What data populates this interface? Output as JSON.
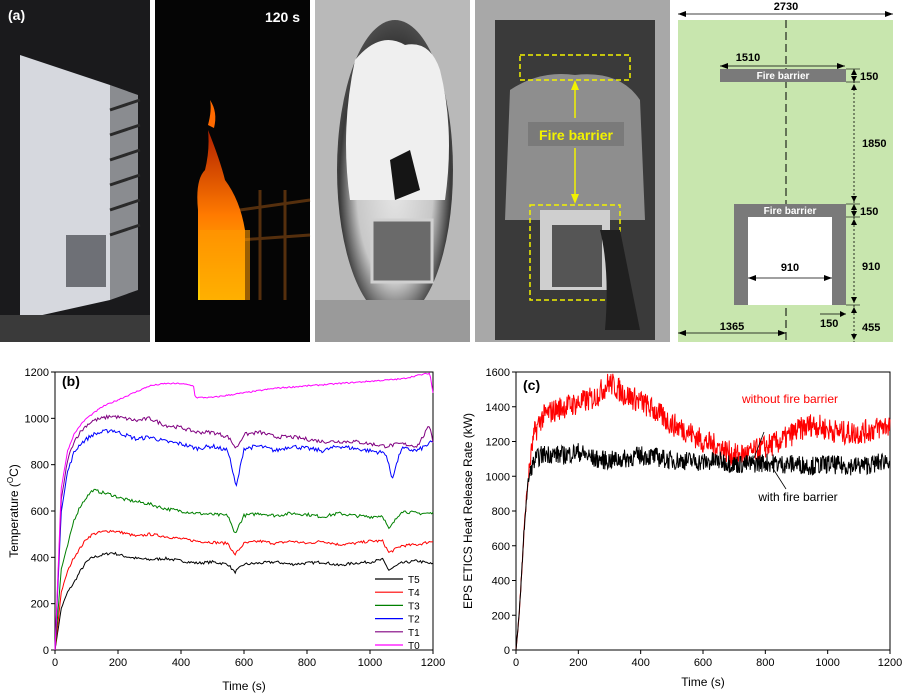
{
  "panel_a": {
    "label": "(a)",
    "time_label": "120 s",
    "photo_annotation": "Fire barrier",
    "drawing": {
      "barrier_top_label": "Fire barrier",
      "barrier_bottom_label": "Fire barrier",
      "dim_total_width": "2730",
      "dim_barrier_width": "1510",
      "dim_barrier_top": "150",
      "dim_gap": "1850",
      "dim_barrier_bottom": "150",
      "dim_window_height": "910",
      "dim_window_width": "910",
      "dim_side": "150",
      "dim_half_width": "1365",
      "dim_sill": "455"
    }
  },
  "colors": {
    "drawing_bg": "#c8e6ae",
    "barrier": "#7a7a7a",
    "annotation_yellow": "#f2f200",
    "T5": "#000000",
    "T4": "#ff0000",
    "T3": "#008000",
    "T2": "#0000ff",
    "T1": "#800080",
    "T0": "#ff00ff",
    "hrr_without": "#ff0000",
    "hrr_with": "#000000"
  },
  "chart_data": [
    {
      "panel": "(b)",
      "type": "line",
      "xlabel": "Time (s)",
      "ylabel": "Temperature (",
      "ylabel_sup": "O",
      "ylabel_tail": "C)",
      "xlim": [
        0,
        1200
      ],
      "ylim": [
        0,
        1200
      ],
      "xticks": [
        "0",
        "200",
        "400",
        "600",
        "800",
        "1000",
        "1200"
      ],
      "yticks": [
        "0",
        "200",
        "400",
        "600",
        "800",
        "1000",
        "1200"
      ],
      "legend_position": "bottom-right",
      "series": [
        {
          "name": "T5",
          "x": [
            0,
            20,
            40,
            60,
            80,
            100,
            120,
            150,
            180,
            220,
            260,
            300,
            350,
            400,
            450,
            500,
            550,
            570,
            600,
            650,
            700,
            750,
            800,
            850,
            900,
            950,
            1000,
            1040,
            1060,
            1100,
            1150,
            1200
          ],
          "y": [
            0,
            180,
            250,
            290,
            340,
            380,
            400,
            410,
            420,
            405,
            395,
            390,
            395,
            385,
            375,
            380,
            370,
            335,
            370,
            375,
            380,
            370,
            375,
            380,
            365,
            375,
            380,
            390,
            345,
            375,
            385,
            370
          ]
        },
        {
          "name": "T4",
          "x": [
            0,
            20,
            40,
            60,
            80,
            100,
            120,
            150,
            180,
            220,
            260,
            300,
            350,
            400,
            450,
            500,
            550,
            570,
            600,
            650,
            700,
            750,
            800,
            850,
            900,
            950,
            1000,
            1040,
            1060,
            1100,
            1150,
            1200
          ],
          "y": [
            0,
            250,
            340,
            400,
            440,
            480,
            500,
            510,
            515,
            505,
            490,
            500,
            490,
            480,
            470,
            465,
            460,
            410,
            460,
            470,
            460,
            470,
            460,
            470,
            455,
            460,
            470,
            470,
            420,
            450,
            455,
            470
          ]
        },
        {
          "name": "T3",
          "x": [
            0,
            20,
            40,
            60,
            80,
            100,
            120,
            150,
            180,
            220,
            260,
            300,
            350,
            400,
            450,
            500,
            550,
            570,
            600,
            650,
            700,
            750,
            800,
            850,
            900,
            950,
            1000,
            1040,
            1060,
            1100,
            1150,
            1200
          ],
          "y": [
            0,
            350,
            450,
            560,
            620,
            660,
            690,
            680,
            670,
            650,
            640,
            630,
            610,
            600,
            590,
            585,
            580,
            500,
            580,
            590,
            580,
            590,
            585,
            575,
            590,
            580,
            575,
            580,
            520,
            600,
            590,
            590
          ]
        },
        {
          "name": "T2",
          "x": [
            0,
            20,
            40,
            60,
            80,
            100,
            120,
            150,
            180,
            220,
            260,
            300,
            350,
            400,
            450,
            500,
            550,
            575,
            600,
            650,
            700,
            750,
            800,
            850,
            900,
            950,
            1000,
            1050,
            1070,
            1100,
            1150,
            1200
          ],
          "y": [
            0,
            600,
            770,
            850,
            890,
            910,
            930,
            940,
            950,
            930,
            910,
            920,
            900,
            890,
            870,
            880,
            860,
            700,
            870,
            880,
            860,
            880,
            870,
            860,
            880,
            870,
            860,
            850,
            740,
            870,
            860,
            900
          ]
        },
        {
          "name": "T1",
          "x": [
            0,
            20,
            40,
            60,
            80,
            100,
            120,
            150,
            180,
            220,
            260,
            300,
            350,
            400,
            450,
            500,
            550,
            575,
            600,
            650,
            700,
            750,
            800,
            850,
            900,
            950,
            1000,
            1050,
            1100,
            1150,
            1190,
            1200
          ],
          "y": [
            0,
            650,
            820,
            900,
            940,
            970,
            990,
            1000,
            1010,
            1000,
            990,
            1000,
            970,
            960,
            940,
            940,
            920,
            870,
            930,
            940,
            920,
            920,
            910,
            900,
            900,
            900,
            890,
            880,
            890,
            880,
            970,
            900
          ]
        },
        {
          "name": "T0",
          "x": [
            0,
            20,
            40,
            60,
            80,
            100,
            120,
            150,
            200,
            250,
            300,
            350,
            400,
            440,
            445,
            500,
            600,
            700,
            800,
            900,
            1000,
            1100,
            1150,
            1190,
            1200
          ],
          "y": [
            0,
            700,
            860,
            930,
            970,
            1000,
            1020,
            1050,
            1080,
            1110,
            1140,
            1150,
            1150,
            1140,
            1090,
            1090,
            1110,
            1130,
            1140,
            1150,
            1160,
            1170,
            1185,
            1195,
            1110
          ]
        }
      ]
    },
    {
      "panel": "(c)",
      "type": "line",
      "xlabel": "Time (s)",
      "ylabel": "EPS ETICS Heat Release Rate (kW)",
      "xlim": [
        0,
        1200
      ],
      "ylim": [
        0,
        1600
      ],
      "xticks": [
        "0",
        "200",
        "400",
        "600",
        "800",
        "1000",
        "1200"
      ],
      "yticks": [
        "0",
        "200",
        "400",
        "600",
        "800",
        "1000",
        "1200",
        "1400",
        "1600"
      ],
      "annotations": [
        "without fire barrier",
        "with fire barrier"
      ],
      "series": [
        {
          "name": "without fire barrier",
          "x": [
            0,
            10,
            20,
            30,
            40,
            50,
            60,
            80,
            100,
            150,
            200,
            250,
            300,
            350,
            400,
            450,
            500,
            550,
            600,
            650,
            700,
            750,
            800,
            850,
            900,
            950,
            1000,
            1050,
            1100,
            1150,
            1200
          ],
          "y": [
            0,
            200,
            500,
            800,
            1000,
            1150,
            1250,
            1330,
            1360,
            1400,
            1420,
            1450,
            1540,
            1470,
            1430,
            1370,
            1300,
            1260,
            1200,
            1170,
            1120,
            1130,
            1170,
            1200,
            1260,
            1300,
            1270,
            1250,
            1250,
            1270,
            1300
          ]
        },
        {
          "name": "with fire barrier",
          "x": [
            0,
            10,
            20,
            30,
            40,
            50,
            60,
            80,
            100,
            150,
            200,
            250,
            300,
            350,
            400,
            450,
            500,
            550,
            600,
            650,
            700,
            750,
            800,
            850,
            900,
            950,
            1000,
            1050,
            1100,
            1150,
            1200
          ],
          "y": [
            0,
            200,
            500,
            800,
            980,
            1050,
            1090,
            1120,
            1130,
            1120,
            1140,
            1100,
            1090,
            1100,
            1120,
            1110,
            1090,
            1090,
            1080,
            1090,
            1070,
            1070,
            1080,
            1070,
            1070,
            1060,
            1070,
            1060,
            1060,
            1070,
            1100
          ]
        }
      ]
    }
  ]
}
